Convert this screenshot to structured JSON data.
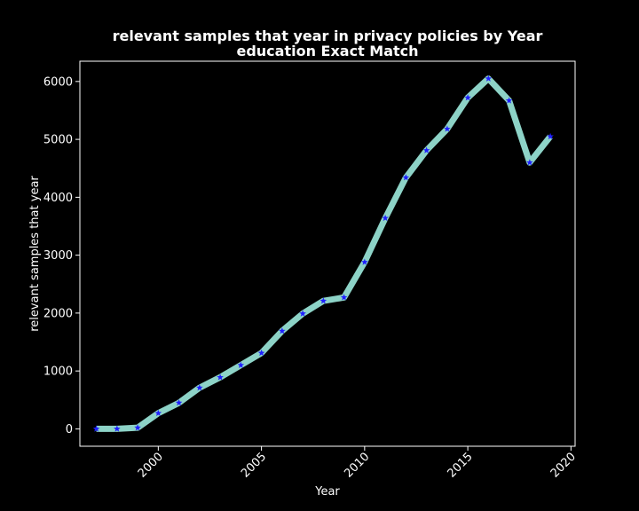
{
  "chart_data": {
    "type": "line",
    "title": "relevant samples that year in privacy policies by Year",
    "subtitle": "education Exact Match",
    "xlabel": "Year",
    "ylabel": "relevant samples that year",
    "xlim": [
      1996.2,
      2020.2
    ],
    "ylim": [
      -300,
      6350
    ],
    "xticks": [
      2000,
      2005,
      2010,
      2015,
      2020
    ],
    "yticks": [
      0,
      1000,
      2000,
      3000,
      4000,
      5000,
      6000
    ],
    "grid": false,
    "series": [
      {
        "line_color": "#8dd3c7",
        "marker_color": "#1f1fff",
        "marker": "star",
        "x": [
          1997,
          1998,
          1999,
          2000,
          2001,
          2002,
          2003,
          2004,
          2005,
          2006,
          2007,
          2008,
          2009,
          2010,
          2011,
          2012,
          2013,
          2014,
          2015,
          2016,
          2017,
          2018,
          2019
        ],
        "y": [
          0,
          0,
          20,
          270,
          450,
          710,
          890,
          1100,
          1310,
          1690,
          1990,
          2210,
          2270,
          2880,
          3640,
          4340,
          4810,
          5180,
          5720,
          6050,
          5670,
          4600,
          5050
        ]
      }
    ]
  },
  "colors": {
    "background": "#000000",
    "axes": "#ffffff",
    "text": "#ffffff"
  }
}
